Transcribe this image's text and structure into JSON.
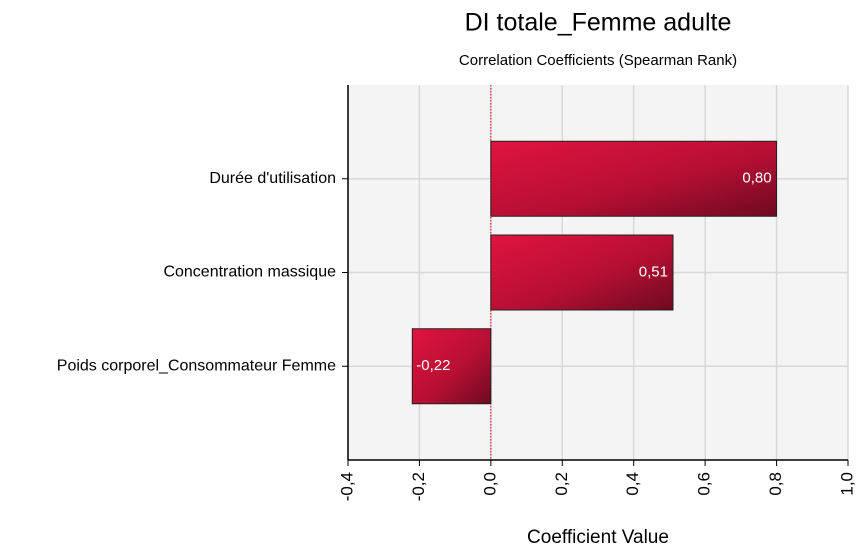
{
  "chart_data": {
    "type": "barh",
    "title": "DI totale_Femme adulte",
    "subtitle": "Correlation Coefficients (Spearman Rank)",
    "xlabel": "Coefficient Value",
    "categories": [
      "Durée d'utilisation",
      "Concentration massique",
      "Poids corporel_Consommateur Femme"
    ],
    "values": [
      0.8,
      0.51,
      -0.22
    ],
    "value_labels": [
      "0,80",
      "0,51",
      "-0,22"
    ],
    "color": "#c8103a",
    "xlim": [
      -0.4,
      1.0
    ],
    "xticks": [
      {
        "value": -0.4,
        "label": "-0,4"
      },
      {
        "value": -0.2,
        "label": "-0,2"
      },
      {
        "value": 0.0,
        "label": "0,0"
      },
      {
        "value": 0.2,
        "label": "0,2"
      },
      {
        "value": 0.4,
        "label": "0,4"
      },
      {
        "value": 0.6,
        "label": "0,6"
      },
      {
        "value": 0.8,
        "label": "0,8"
      },
      {
        "value": 1.0,
        "label": "1,0"
      }
    ],
    "grid": true
  }
}
